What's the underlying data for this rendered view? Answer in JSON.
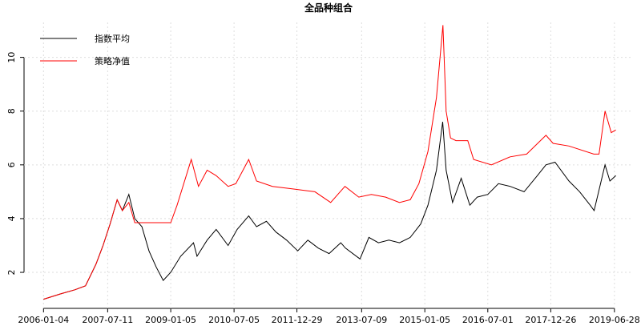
{
  "chart_data": {
    "type": "line",
    "title": "全品种组合",
    "xlim": [
      "2005-07-20",
      "2019-12-05"
    ],
    "xticks": [
      "2006-01-04",
      "2007-07-11",
      "2009-01-05",
      "2010-07-05",
      "2011-12-29",
      "2013-07-09",
      "2015-01-05",
      "2016-07-01",
      "2017-12-26",
      "2019-06-28"
    ],
    "ylim": [
      0.66,
      11.3
    ],
    "yticks": [
      2,
      4,
      6,
      8,
      10
    ],
    "grid": true,
    "legend": "top-left",
    "series": [
      {
        "name": "指数平均",
        "color": "#000000",
        "x": [
          "2006-01-04",
          "2006-06-01",
          "2006-10-01",
          "2007-01-01",
          "2007-04-01",
          "2007-06-01",
          "2007-08-01",
          "2007-10-01",
          "2007-11-15",
          "2008-01-10",
          "2008-03-01",
          "2008-05-01",
          "2008-07-01",
          "2008-09-01",
          "2008-11-01",
          "2009-01-05",
          "2009-04-01",
          "2009-07-20",
          "2009-08-20",
          "2009-11-15",
          "2010-02-01",
          "2010-05-15",
          "2010-08-01",
          "2010-11-08",
          "2011-01-15",
          "2011-04-10",
          "2011-07-01",
          "2011-10-01",
          "2012-01-05",
          "2012-04-01",
          "2012-07-01",
          "2012-10-01",
          "2013-01-10",
          "2013-02-20",
          "2013-06-25",
          "2013-09-10",
          "2013-12-01",
          "2014-03-01",
          "2014-06-01",
          "2014-09-01",
          "2014-12-01",
          "2015-02-01",
          "2015-04-15",
          "2015-06-08",
          "2015-07-08",
          "2015-09-01",
          "2015-11-15",
          "2016-01-28",
          "2016-04-01",
          "2016-07-01",
          "2016-10-01",
          "2017-01-10",
          "2017-05-10",
          "2017-09-01",
          "2017-11-15",
          "2018-02-01",
          "2018-06-01",
          "2018-09-01",
          "2018-12-01",
          "2019-01-04",
          "2019-04-08",
          "2019-05-20",
          "2019-07-10"
        ],
        "values": [
          1.0,
          1.2,
          1.35,
          1.5,
          2.3,
          3.0,
          3.8,
          4.7,
          4.3,
          4.9,
          4.0,
          3.7,
          2.8,
          2.2,
          1.7,
          2.0,
          2.6,
          3.1,
          2.6,
          3.2,
          3.6,
          3.0,
          3.6,
          4.1,
          3.7,
          3.9,
          3.5,
          3.2,
          2.8,
          3.2,
          2.9,
          2.7,
          3.1,
          2.9,
          2.5,
          3.3,
          3.1,
          3.2,
          3.1,
          3.3,
          3.8,
          4.5,
          5.8,
          7.6,
          5.8,
          4.6,
          5.5,
          4.5,
          4.8,
          4.9,
          5.3,
          5.2,
          5.0,
          5.6,
          6.0,
          6.1,
          5.4,
          5.0,
          4.5,
          4.3,
          6.0,
          5.4,
          5.6
        ]
      },
      {
        "name": "策略净值",
        "color": "#ff0000",
        "x": [
          "2006-01-04",
          "2006-06-01",
          "2006-10-01",
          "2007-01-01",
          "2007-04-01",
          "2007-06-01",
          "2007-08-01",
          "2007-10-01",
          "2007-11-15",
          "2008-01-10",
          "2008-03-01",
          "2009-01-05",
          "2009-03-01",
          "2009-07-01",
          "2009-09-01",
          "2009-11-15",
          "2010-02-01",
          "2010-05-15",
          "2010-07-20",
          "2010-11-08",
          "2011-01-15",
          "2011-06-01",
          "2011-12-01",
          "2012-06-01",
          "2012-10-15",
          "2013-02-15",
          "2013-06-15",
          "2013-10-01",
          "2014-02-01",
          "2014-06-01",
          "2014-09-01",
          "2014-11-15",
          "2015-02-01",
          "2015-04-15",
          "2015-06-10",
          "2015-07-08",
          "2015-08-15",
          "2015-10-01",
          "2016-01-10",
          "2016-03-01",
          "2016-08-01",
          "2017-01-10",
          "2017-06-01",
          "2017-11-15",
          "2018-01-15",
          "2018-06-01",
          "2019-01-01",
          "2019-02-15",
          "2019-04-08",
          "2019-06-01",
          "2019-07-10"
        ],
        "values": [
          1.0,
          1.2,
          1.35,
          1.5,
          2.3,
          3.0,
          3.8,
          4.7,
          4.3,
          4.6,
          3.85,
          3.85,
          4.5,
          6.2,
          5.2,
          5.8,
          5.6,
          5.2,
          5.3,
          6.2,
          5.4,
          5.2,
          5.1,
          5.0,
          4.6,
          5.2,
          4.8,
          4.9,
          4.8,
          4.6,
          4.7,
          5.3,
          6.5,
          8.5,
          11.2,
          8.0,
          7.0,
          6.9,
          6.9,
          6.2,
          6.0,
          6.3,
          6.4,
          7.1,
          6.8,
          6.7,
          6.4,
          6.4,
          8.0,
          7.2,
          7.3
        ]
      }
    ]
  }
}
